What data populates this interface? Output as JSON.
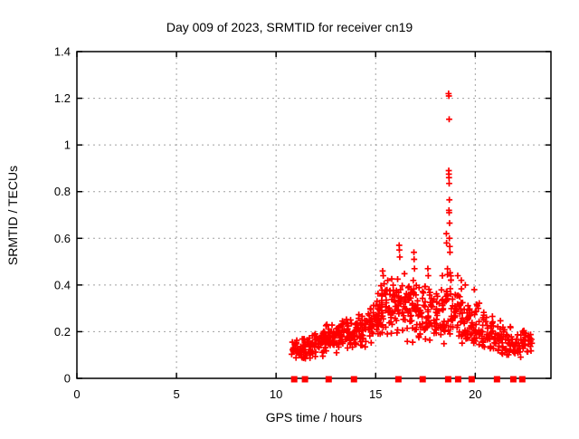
{
  "chart_data": {
    "type": "scatter",
    "title": "Day 009 of 2023, SRMTID for receiver cn19",
    "xlabel": "GPS time / hours",
    "ylabel": "SRMTID / TECUs",
    "xlim": [
      0,
      23.8
    ],
    "ylim": [
      0,
      1.4
    ],
    "xticks": [
      0,
      5,
      10,
      15,
      20
    ],
    "xtick_labels": [
      "0",
      "5",
      "10",
      "15",
      "20"
    ],
    "yticks": [
      0,
      0.2,
      0.4,
      0.6,
      0.8,
      1.0,
      1.2,
      1.4
    ],
    "ytick_labels": [
      "0",
      "0.2",
      "0.4",
      "0.6",
      "0.8",
      "1",
      "1.2",
      "1.4"
    ],
    "grid": "dotted",
    "grid_color": "#a0a0a0",
    "axis_color": "#000000",
    "marker": "plus",
    "marker_color": "#ff0000",
    "legend": "none",
    "seed": 20230109,
    "series": [
      {
        "name": "SRMTID receiver cn19",
        "x_range_of_data": [
          10.77,
          22.9
        ],
        "density_bands": [
          [
            10.75,
            11.0,
            10,
            0.09,
            0.17
          ],
          [
            11.0,
            11.3,
            18,
            0.06,
            0.17
          ],
          [
            11.3,
            11.6,
            20,
            0.07,
            0.19
          ],
          [
            11.6,
            11.9,
            20,
            0.07,
            0.2
          ],
          [
            11.9,
            12.2,
            20,
            0.08,
            0.21
          ],
          [
            12.2,
            12.5,
            20,
            0.08,
            0.22
          ],
          [
            12.5,
            12.8,
            20,
            0.09,
            0.24
          ],
          [
            12.8,
            13.1,
            22,
            0.09,
            0.25
          ],
          [
            13.1,
            13.4,
            22,
            0.1,
            0.26
          ],
          [
            13.4,
            13.7,
            20,
            0.1,
            0.27
          ],
          [
            13.7,
            14.0,
            20,
            0.11,
            0.28
          ],
          [
            14.0,
            14.3,
            22,
            0.12,
            0.29
          ],
          [
            14.3,
            14.6,
            22,
            0.12,
            0.31
          ],
          [
            14.6,
            14.9,
            24,
            0.13,
            0.33
          ],
          [
            14.9,
            15.2,
            24,
            0.14,
            0.38
          ],
          [
            15.2,
            15.5,
            24,
            0.15,
            0.42
          ],
          [
            15.5,
            15.8,
            24,
            0.15,
            0.44
          ],
          [
            15.8,
            16.1,
            20,
            0.14,
            0.45
          ],
          [
            16.1,
            16.4,
            20,
            0.14,
            0.48
          ],
          [
            16.4,
            16.7,
            22,
            0.15,
            0.47
          ],
          [
            16.7,
            17.0,
            22,
            0.15,
            0.5
          ],
          [
            17.0,
            17.3,
            22,
            0.14,
            0.44
          ],
          [
            17.3,
            17.6,
            20,
            0.14,
            0.45
          ],
          [
            17.6,
            17.9,
            22,
            0.13,
            0.46
          ],
          [
            17.9,
            18.2,
            20,
            0.13,
            0.42
          ],
          [
            18.2,
            18.5,
            20,
            0.12,
            0.4
          ],
          [
            18.5,
            18.8,
            22,
            0.15,
            0.52
          ],
          [
            18.8,
            19.1,
            20,
            0.14,
            0.44
          ],
          [
            19.1,
            19.4,
            20,
            0.13,
            0.42
          ],
          [
            19.4,
            19.7,
            20,
            0.12,
            0.38
          ],
          [
            19.7,
            20.0,
            18,
            0.12,
            0.36
          ],
          [
            20.0,
            20.3,
            18,
            0.12,
            0.35
          ],
          [
            20.3,
            20.6,
            17,
            0.1,
            0.32
          ],
          [
            20.6,
            20.9,
            17,
            0.1,
            0.28
          ],
          [
            20.9,
            21.2,
            17,
            0.09,
            0.26
          ],
          [
            21.2,
            21.5,
            17,
            0.08,
            0.25
          ],
          [
            21.5,
            21.8,
            17,
            0.07,
            0.24
          ],
          [
            21.8,
            22.1,
            15,
            0.08,
            0.22
          ],
          [
            22.1,
            22.4,
            15,
            0.08,
            0.21
          ],
          [
            22.4,
            22.65,
            12,
            0.09,
            0.22
          ],
          [
            22.65,
            22.9,
            11,
            0.1,
            0.24
          ]
        ],
        "outlier_points": [
          [
            15.35,
            0.46
          ],
          [
            15.38,
            0.44
          ],
          [
            16.18,
            0.57
          ],
          [
            16.19,
            0.55
          ],
          [
            16.21,
            0.52
          ],
          [
            16.92,
            0.54
          ],
          [
            16.93,
            0.51
          ],
          [
            16.95,
            0.47
          ],
          [
            17.62,
            0.47
          ],
          [
            17.64,
            0.44
          ],
          [
            18.35,
            0.44
          ],
          [
            18.55,
            0.62
          ],
          [
            18.56,
            0.58
          ],
          [
            18.66,
            1.22
          ],
          [
            18.675,
            1.21
          ],
          [
            18.69,
            1.11
          ],
          [
            18.67,
            0.89
          ],
          [
            18.675,
            0.875
          ],
          [
            18.68,
            0.86
          ],
          [
            18.69,
            0.835
          ],
          [
            18.7,
            0.765
          ],
          [
            18.68,
            0.72
          ],
          [
            18.69,
            0.71
          ],
          [
            18.71,
            0.665
          ],
          [
            18.7,
            0.6
          ],
          [
            18.72,
            0.565
          ],
          [
            18.73,
            0.54
          ],
          [
            19.12,
            0.44
          ],
          [
            19.3,
            0.42
          ],
          [
            19.5,
            0.4
          ],
          [
            19.95,
            0.38
          ]
        ],
        "zero_marker_x": [
          10.91,
          11.45,
          12.64,
          13.91,
          16.14,
          17.36,
          18.64,
          19.14,
          19.82,
          21.09,
          21.91,
          22.36
        ]
      }
    ]
  }
}
